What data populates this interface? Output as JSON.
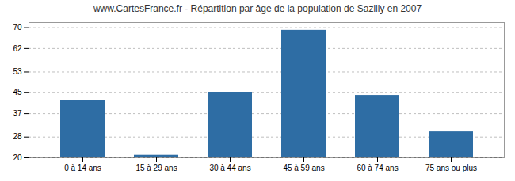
{
  "chart_data": {
    "type": "bar",
    "title": "www.CartesFrance.fr - Répartition par âge de la population de Sazilly en 2007",
    "categories": [
      "0 à 14 ans",
      "15 à 29 ans",
      "30 à 44 ans",
      "45 à 59 ans",
      "60 à 74 ans",
      "75 ans ou plus"
    ],
    "values": [
      42,
      21,
      45,
      69,
      44,
      30
    ],
    "color": "#2e6da4",
    "ylim": [
      20,
      72
    ],
    "yticks": [
      20,
      28,
      37,
      45,
      53,
      62,
      70
    ],
    "grid": true
  }
}
